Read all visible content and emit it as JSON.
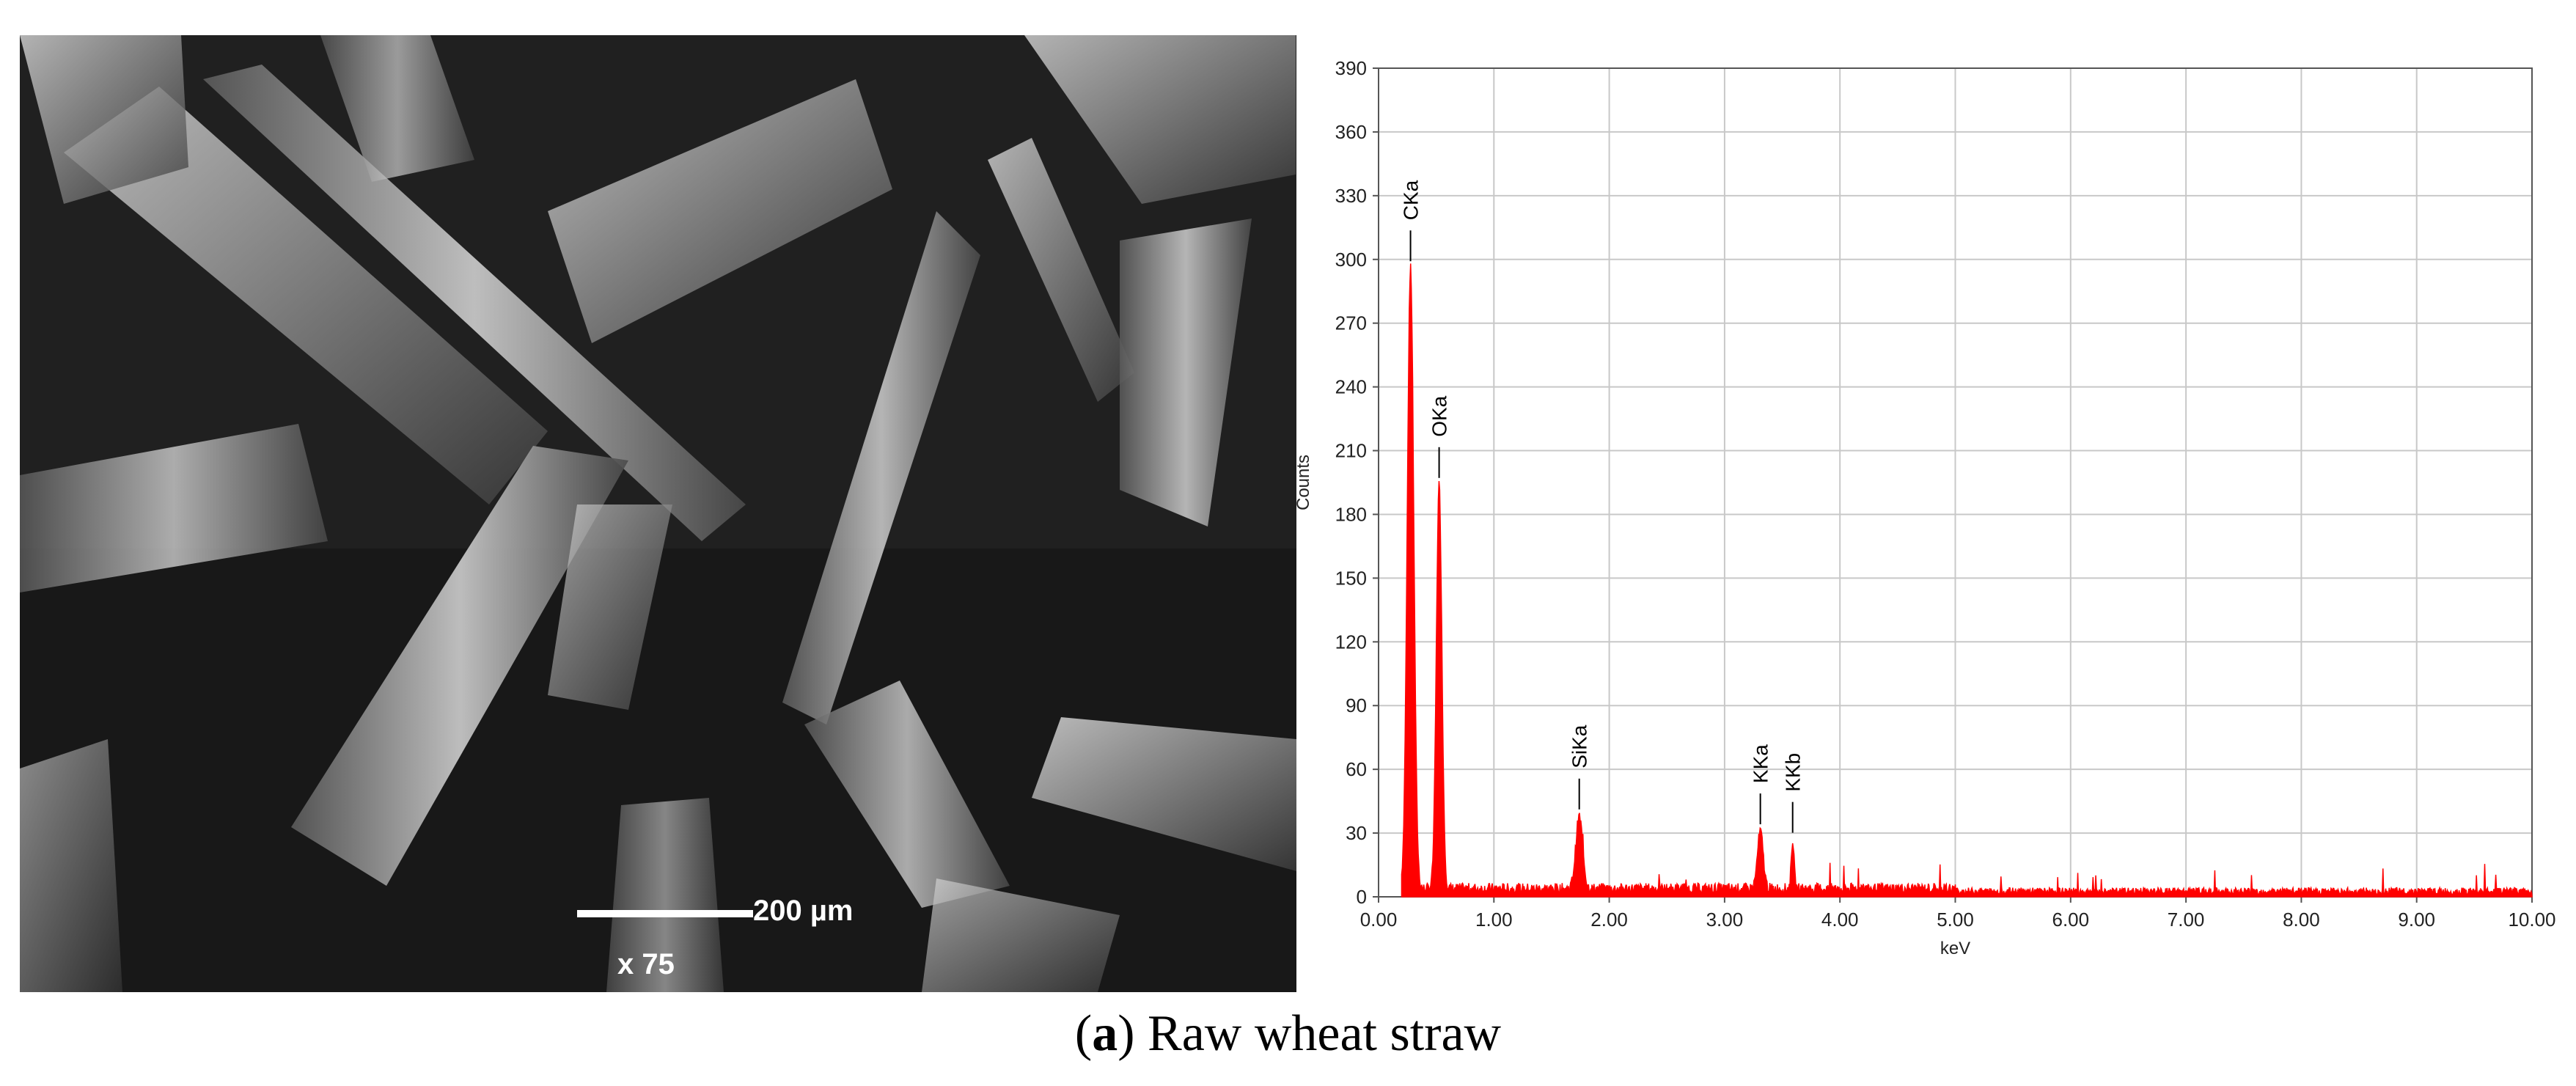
{
  "sem_image": {
    "scale_bar_label": "200 µm",
    "magnification": "x 75"
  },
  "chart_data": {
    "type": "line",
    "title": "",
    "xlabel": "keV",
    "ylabel": "Counts",
    "xlim": [
      0,
      10
    ],
    "ylim": [
      0,
      390
    ],
    "x_ticks": [
      "0.00",
      "1.00",
      "2.00",
      "3.00",
      "4.00",
      "5.00",
      "6.00",
      "7.00",
      "8.00",
      "9.00",
      "10.00"
    ],
    "y_ticks": [
      "0",
      "30",
      "60",
      "90",
      "120",
      "150",
      "180",
      "210",
      "240",
      "270",
      "300",
      "330",
      "360",
      "390"
    ],
    "grid": true,
    "series_color": "#ff0000",
    "peaks": [
      {
        "label": "CKa",
        "x": 0.277,
        "y": 295
      },
      {
        "label": "OKa",
        "x": 0.525,
        "y": 193
      },
      {
        "label": "SiKa",
        "x": 1.74,
        "y": 37
      },
      {
        "label": "KKa",
        "x": 3.31,
        "y": 30
      },
      {
        "label": "KKb",
        "x": 3.59,
        "y": 26
      }
    ],
    "baseline_level": 3
  },
  "caption": {
    "label": "a",
    "text": " Raw wheat straw"
  }
}
